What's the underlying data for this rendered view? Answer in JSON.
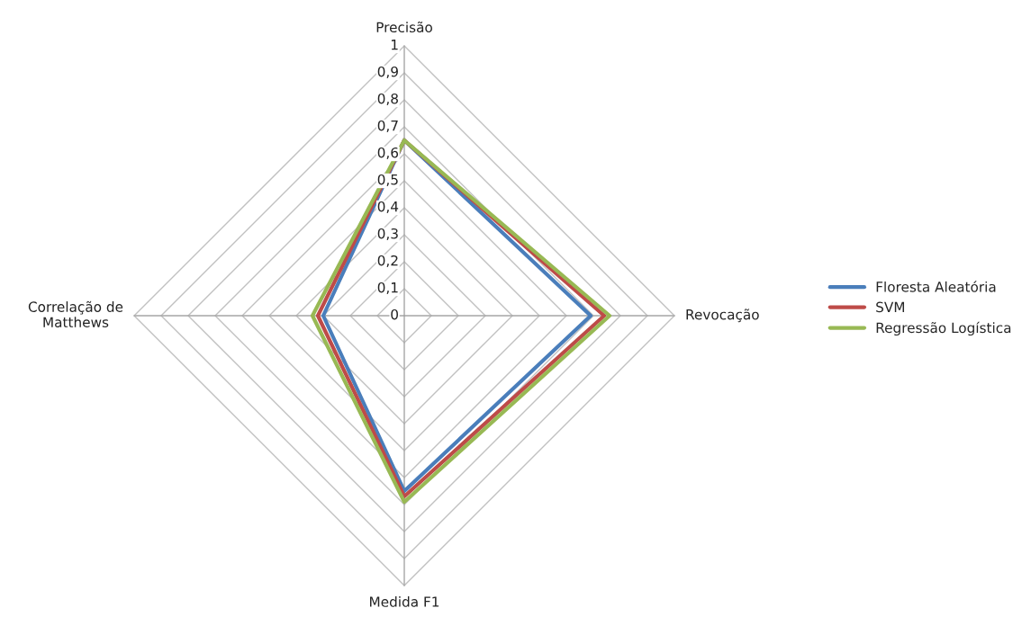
{
  "chart_data": {
    "type": "radar",
    "categories": [
      "Precisão",
      "Revocação",
      "Medida F1",
      "Correlação de Matthews"
    ],
    "series": [
      {
        "name": "Floresta Aleatória",
        "color": "#4a7ebb",
        "values": [
          0.65,
          0.69,
          0.65,
          0.3
        ]
      },
      {
        "name": "SVM",
        "color": "#be4b48",
        "values": [
          0.65,
          0.74,
          0.67,
          0.32
        ]
      },
      {
        "name": "Regressão Logística",
        "color": "#98b954",
        "values": [
          0.65,
          0.76,
          0.69,
          0.34
        ]
      }
    ],
    "ylim": [
      0,
      1
    ],
    "yticks": [
      {
        "value": 0,
        "label": "0"
      },
      {
        "value": 0.1,
        "label": "0,1"
      },
      {
        "value": 0.2,
        "label": "0,2"
      },
      {
        "value": 0.3,
        "label": "0,3"
      },
      {
        "value": 0.4,
        "label": "0,4"
      },
      {
        "value": 0.5,
        "label": "0,5"
      },
      {
        "value": 0.6,
        "label": "0,6"
      },
      {
        "value": 0.7,
        "label": "0,7"
      },
      {
        "value": 0.8,
        "label": "0,8"
      },
      {
        "value": 0.9,
        "label": "0,9"
      },
      {
        "value": 1,
        "label": "1"
      }
    ],
    "grid": true,
    "legend": "right"
  }
}
